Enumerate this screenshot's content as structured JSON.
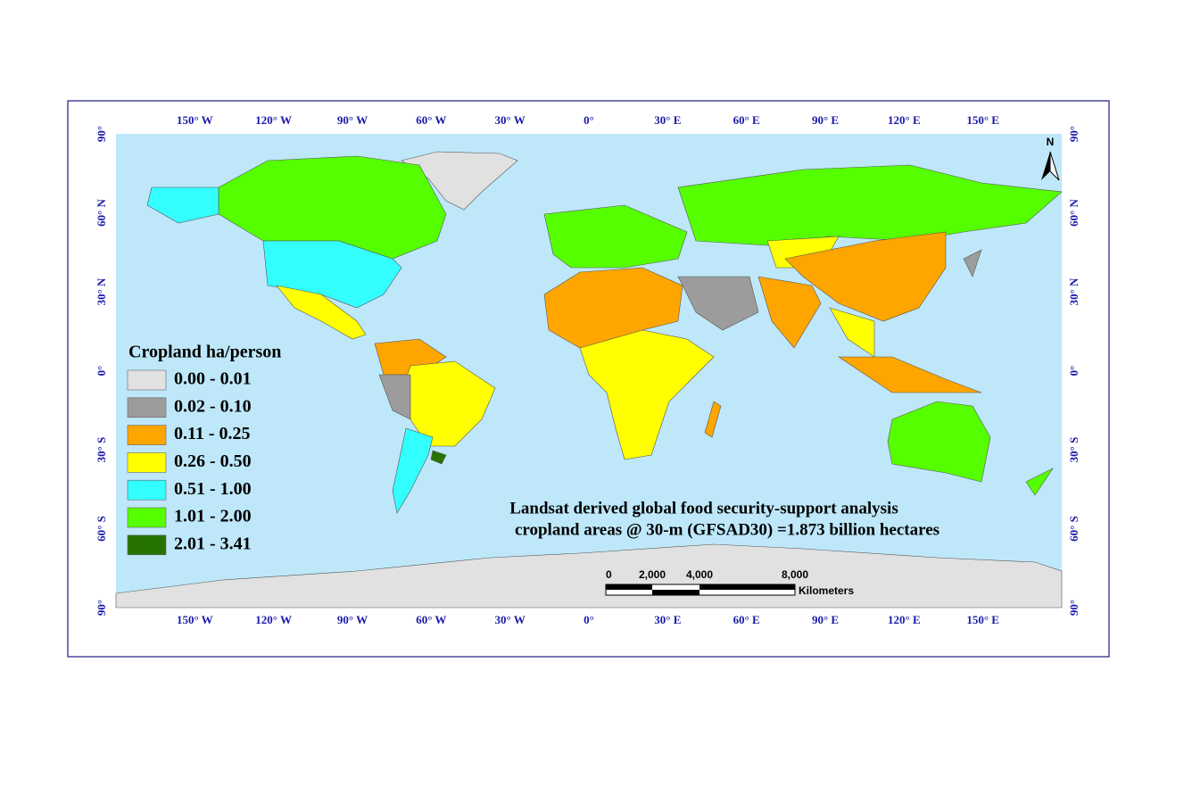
{
  "map": {
    "lon_labels": [
      "150° W",
      "120° W",
      "90° W",
      "60° W",
      "30° W",
      "0°",
      "30° E",
      "60° E",
      "90° E",
      "120° E",
      "150° E"
    ],
    "lat_labels": [
      "90°",
      "60° N",
      "30° N",
      "0°",
      "30° S",
      "60° S",
      "90°"
    ],
    "north": "N",
    "legend": {
      "title": "Cropland ha/person",
      "classes": [
        {
          "label": "0.00 - 0.01",
          "color": "#e1e1e1"
        },
        {
          "label": "0.02 - 0.10",
          "color": "#9c9c9c"
        },
        {
          "label": "0.11 - 0.25",
          "color": "#ffa500"
        },
        {
          "label": "0.26 - 0.50",
          "color": "#ffff00"
        },
        {
          "label": "0.51 - 1.00",
          "color": "#33ffff"
        },
        {
          "label": "1.01 - 2.00",
          "color": "#55ff00"
        },
        {
          "label": "2.01 - 3.41",
          "color": "#267300"
        }
      ]
    },
    "title": [
      "Landsat derived global food security-support analysis",
      "cropland areas @ 30-m (GFSAD30) =1.873 billion hectares"
    ],
    "scale_bar": {
      "ticks": [
        "0",
        "2,000",
        "4,000",
        "8,000"
      ],
      "unit": "Kilometers"
    }
  }
}
